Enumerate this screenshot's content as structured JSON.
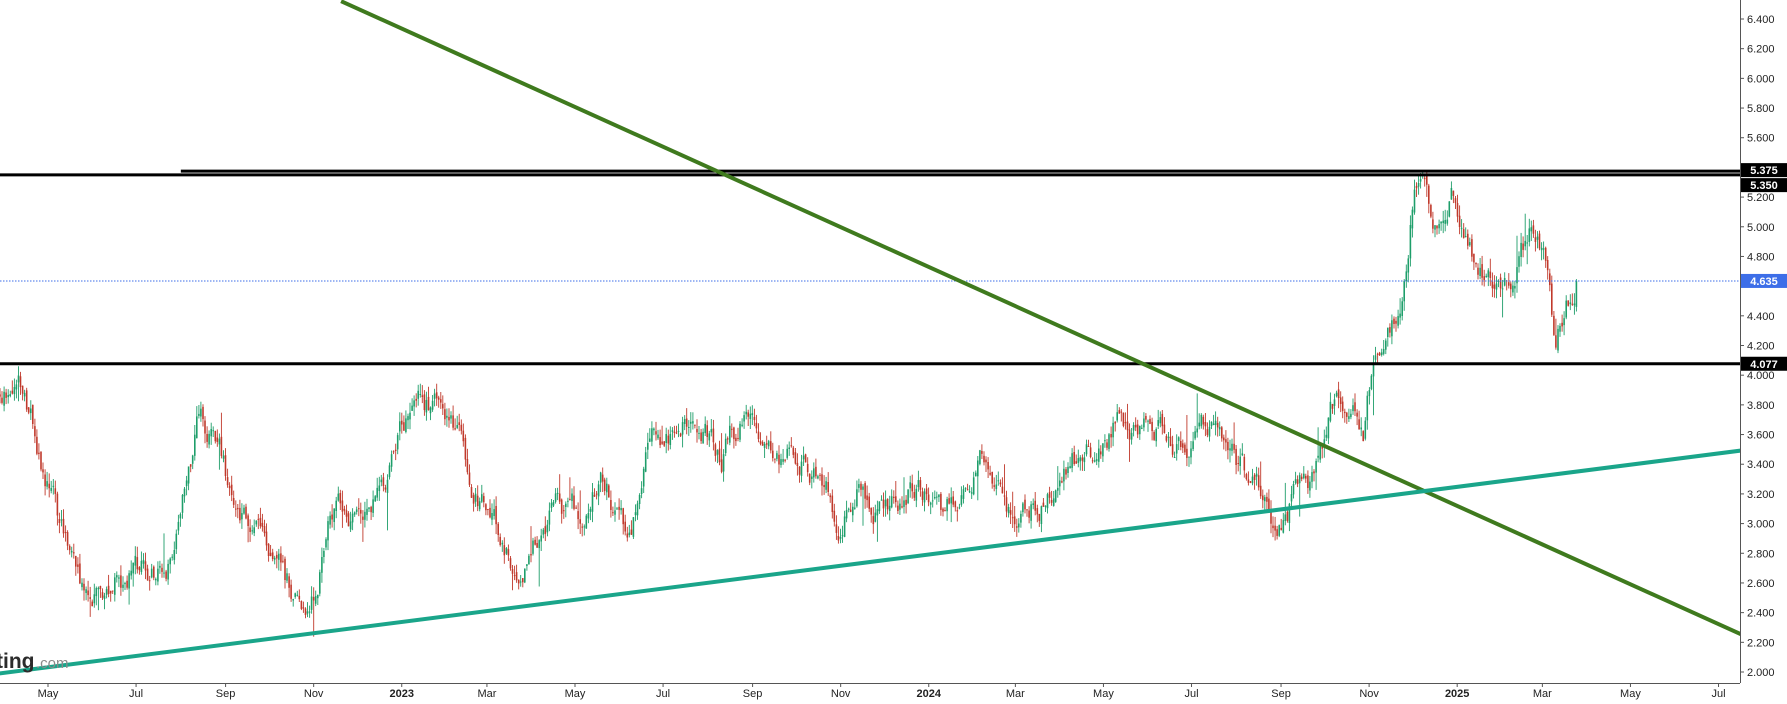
{
  "chart_data": {
    "type": "candlestick",
    "y_axis": {
      "ticks": [
        "6.400",
        "6.200",
        "6.000",
        "5.800",
        "5.600",
        "5.200",
        "5.000",
        "4.800",
        "4.400",
        "4.200",
        "4.000",
        "3.800",
        "3.600",
        "3.400",
        "3.200",
        "3.000",
        "2.800",
        "2.600",
        "2.400",
        "2.200",
        "2.000"
      ],
      "range": [
        1.92,
        6.5
      ]
    },
    "x_axis": {
      "ticks": [
        "May",
        "Jul",
        "Sep",
        "Nov",
        "2023",
        "Mar",
        "May",
        "Jul",
        "Sep",
        "Nov",
        "2024",
        "Mar",
        "May",
        "Jul",
        "Sep",
        "Nov",
        "2025",
        "Mar",
        "May",
        "Jul"
      ],
      "bold_ticks": [
        "2023",
        "2024",
        "2025"
      ]
    },
    "price_tags": [
      {
        "label": "5.375",
        "value": 5.375,
        "color": "#000000"
      },
      {
        "label": "5.350",
        "value": 5.35,
        "color": "#000000"
      },
      {
        "label": "4.635",
        "value": 4.635,
        "color": "#3d6ee8"
      },
      {
        "label": "4.077",
        "value": 4.077,
        "color": "#000000"
      }
    ],
    "horizontal_lines": [
      {
        "name": "resistance-zone-upper",
        "value": 5.375,
        "color": "#000000",
        "start": "2022-08"
      },
      {
        "name": "resistance-zone-lower",
        "value": 5.35,
        "color": "#000000",
        "start": "2022-03"
      },
      {
        "name": "support-line",
        "value": 4.077,
        "color": "#000000",
        "start": "2022-03"
      },
      {
        "name": "last-price-line",
        "value": 4.635,
        "color": "#3d6ee8",
        "style": "dotted",
        "start": "2022-03"
      }
    ],
    "trend_lines": [
      {
        "name": "descending-trendline",
        "color": "#3f7a1e",
        "points": [
          [
            "2022-11-20",
            6.52
          ],
          [
            "2025-09-01",
            2.05
          ]
        ]
      },
      {
        "name": "ascending-trendline",
        "color": "#1aa58a",
        "points": [
          [
            "2022-03-20",
            1.98
          ],
          [
            "2025-09-01",
            3.55
          ]
        ]
      }
    ],
    "anchors": [
      [
        "2022-04-15",
        3.85
      ],
      [
        "2022-05-25",
        2.45
      ],
      [
        "2022-06-15",
        2.6
      ],
      [
        "2022-07-25",
        2.75
      ],
      [
        "2022-08-15",
        3.8
      ],
      [
        "2022-09-10",
        3.05
      ],
      [
        "2022-10-10",
        2.7
      ],
      [
        "2022-10-25",
        2.3
      ],
      [
        "2022-11-15",
        3.05
      ],
      [
        "2022-12-05",
        3.05
      ],
      [
        "2022-12-28",
        3.45
      ],
      [
        "2023-01-10",
        3.8
      ],
      [
        "2023-02-01",
        3.7
      ],
      [
        "2023-02-25",
        3.2
      ],
      [
        "2023-03-15",
        2.85
      ],
      [
        "2023-03-25",
        2.72
      ],
      [
        "2023-04-15",
        3.05
      ],
      [
        "2023-05-05",
        3.0
      ],
      [
        "2023-05-20",
        3.3
      ],
      [
        "2023-06-05",
        2.9
      ],
      [
        "2023-06-25",
        3.6
      ],
      [
        "2023-07-20",
        3.7
      ],
      [
        "2023-08-10",
        3.45
      ],
      [
        "2023-08-30",
        3.75
      ],
      [
        "2023-09-10",
        3.55
      ],
      [
        "2023-10-05",
        3.45
      ],
      [
        "2023-11-01",
        3.05
      ],
      [
        "2023-11-15",
        3.35
      ],
      [
        "2023-12-05",
        3.05
      ],
      [
        "2023-12-25",
        3.3
      ],
      [
        "2024-01-10",
        2.95
      ],
      [
        "2024-01-20",
        3.15
      ],
      [
        "2024-02-10",
        3.5
      ],
      [
        "2024-02-25",
        3.1
      ],
      [
        "2024-03-25",
        3.2
      ],
      [
        "2024-04-15",
        3.45
      ],
      [
        "2024-05-10",
        3.65
      ],
      [
        "2024-06-10",
        3.65
      ],
      [
        "2024-07-05",
        3.55
      ],
      [
        "2024-07-25",
        3.55
      ],
      [
        "2024-08-10",
        3.3
      ],
      [
        "2024-08-25",
        3.1
      ],
      [
        "2024-09-20",
        3.3
      ],
      [
        "2024-10-10",
        3.85
      ],
      [
        "2024-10-28",
        3.65
      ],
      [
        "2024-11-05",
        4.15
      ],
      [
        "2024-11-22",
        4.35
      ],
      [
        "2024-11-28",
        4.9
      ],
      [
        "2024-12-03",
        5.45
      ],
      [
        "2024-12-15",
        5.05
      ],
      [
        "2024-12-28",
        5.35
      ],
      [
        "2025-01-10",
        4.95
      ],
      [
        "2025-01-28",
        4.55
      ],
      [
        "2025-02-10",
        4.65
      ],
      [
        "2025-02-20",
        4.95
      ],
      [
        "2025-03-01",
        4.85
      ],
      [
        "2025-03-10",
        4.15
      ],
      [
        "2025-03-15",
        4.35
      ],
      [
        "2025-03-25",
        4.65
      ]
    ],
    "last_close": 4.635,
    "up_color": "#1e9e6a",
    "down_color": "#c0392b",
    "grid": false,
    "watermark": {
      "text": "ting",
      "suffix": ".com"
    }
  }
}
